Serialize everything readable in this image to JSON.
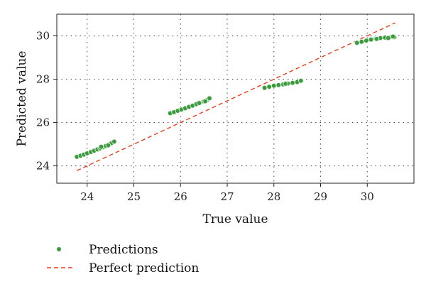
{
  "chart_data": {
    "type": "scatter",
    "xlabel": "True value",
    "ylabel": "Predicted value",
    "xlim": [
      23.35,
      31.0
    ],
    "ylim": [
      23.2,
      31.0
    ],
    "xticks": [
      "24",
      "25",
      "26",
      "27",
      "28",
      "29",
      "30"
    ],
    "yticks": [
      "24",
      "26",
      "28",
      "30"
    ],
    "xtick_values": [
      24,
      25,
      26,
      27,
      28,
      29,
      30
    ],
    "ytick_values": [
      24,
      26,
      28,
      30
    ],
    "grid": true,
    "legend_position": "bottom-left",
    "series": [
      {
        "name": "Predictions",
        "kind": "scatter",
        "color": "#3a9a3f",
        "points": [
          [
            23.78,
            24.42
          ],
          [
            23.86,
            24.47
          ],
          [
            23.93,
            24.52
          ],
          [
            24.0,
            24.58
          ],
          [
            24.08,
            24.64
          ],
          [
            24.15,
            24.7
          ],
          [
            24.22,
            24.76
          ],
          [
            24.28,
            24.81
          ],
          [
            24.34,
            24.86
          ],
          [
            24.4,
            24.92
          ],
          [
            24.46,
            24.98
          ],
          [
            24.52,
            25.05
          ],
          [
            24.58,
            25.12
          ],
          [
            24.3,
            24.88
          ],
          [
            24.45,
            24.95
          ],
          [
            25.78,
            26.43
          ],
          [
            25.86,
            26.48
          ],
          [
            25.94,
            26.54
          ],
          [
            26.02,
            26.6
          ],
          [
            26.1,
            26.66
          ],
          [
            26.18,
            26.72
          ],
          [
            26.26,
            26.78
          ],
          [
            26.34,
            26.85
          ],
          [
            26.42,
            26.91
          ],
          [
            26.5,
            26.97
          ],
          [
            26.57,
            27.04
          ],
          [
            26.62,
            27.12
          ],
          [
            26.4,
            26.9
          ],
          [
            26.53,
            26.98
          ],
          [
            27.8,
            27.6
          ],
          [
            27.9,
            27.65
          ],
          [
            28.0,
            27.7
          ],
          [
            28.1,
            27.73
          ],
          [
            28.2,
            27.76
          ],
          [
            28.3,
            27.8
          ],
          [
            28.4,
            27.83
          ],
          [
            28.5,
            27.87
          ],
          [
            28.58,
            27.93
          ],
          [
            28.25,
            27.79
          ],
          [
            29.78,
            29.68
          ],
          [
            29.88,
            29.73
          ],
          [
            29.98,
            29.78
          ],
          [
            30.08,
            29.83
          ],
          [
            30.18,
            29.87
          ],
          [
            30.28,
            29.9
          ],
          [
            30.38,
            29.92
          ],
          [
            30.48,
            29.93
          ],
          [
            30.58,
            29.94
          ],
          [
            30.45,
            29.9
          ],
          [
            30.2,
            29.86
          ],
          [
            30.55,
            29.97
          ]
        ]
      },
      {
        "name": "Perfect prediction",
        "kind": "line",
        "style": "dashed",
        "color": "#e8401c",
        "points": [
          [
            23.78,
            23.78
          ],
          [
            30.6,
            30.6
          ]
        ]
      }
    ]
  }
}
